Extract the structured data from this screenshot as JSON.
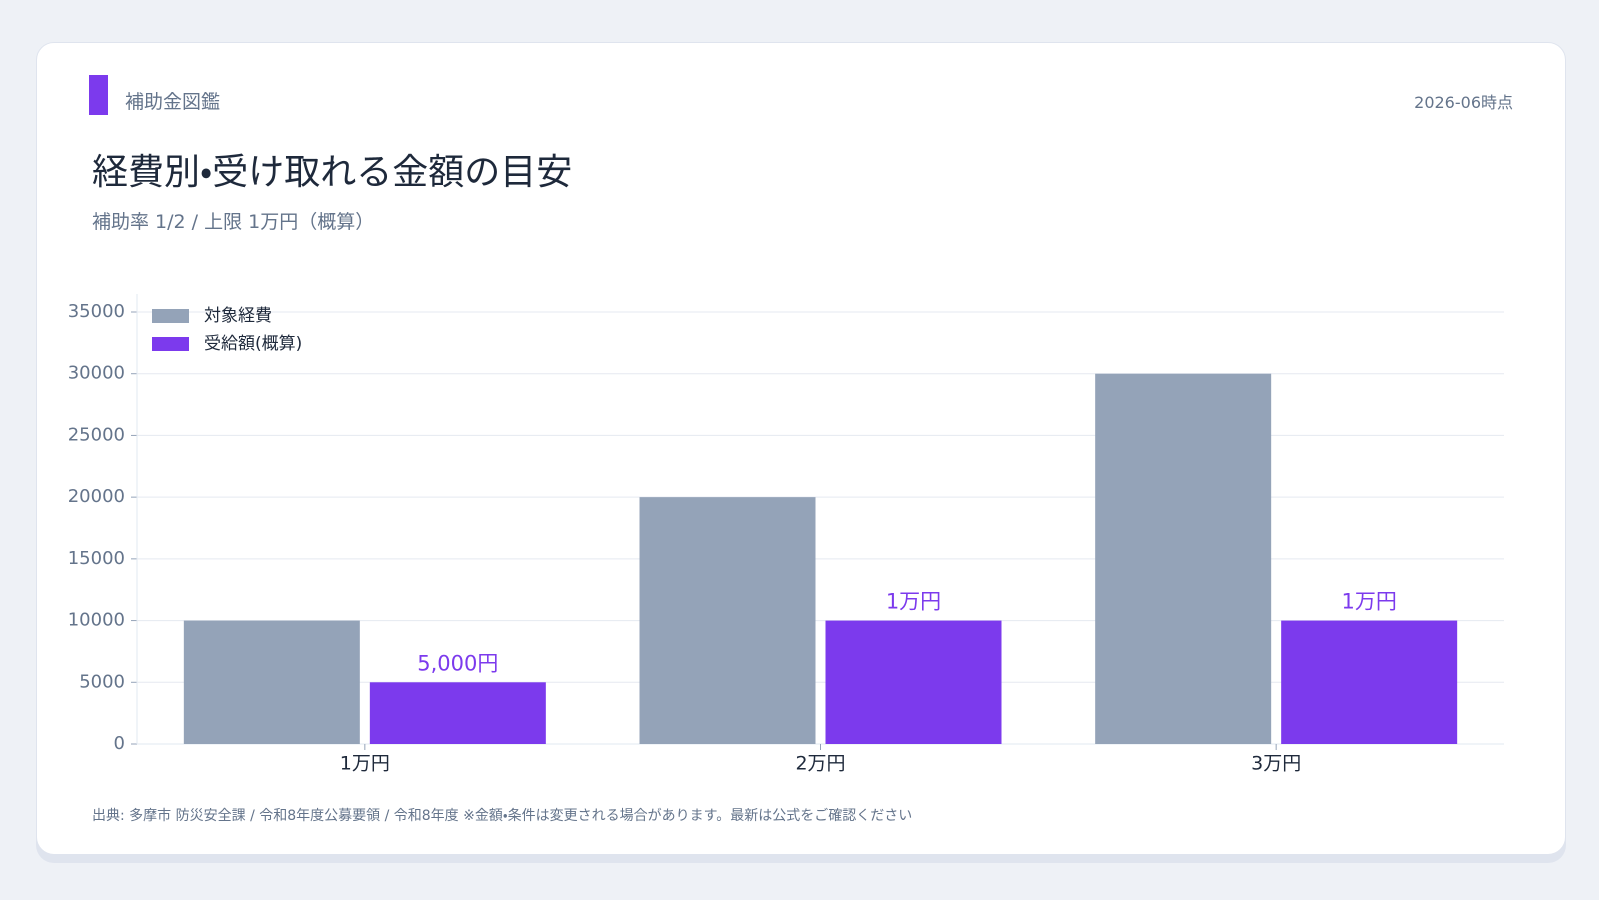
{
  "header": {
    "brand": "補助金図鑑",
    "date": "2026-06時点"
  },
  "chart_data": {
    "type": "bar",
    "title": "経費別・受け取れる金額の目安",
    "subtitle": "補助率 1/2 / 上限 1万円（概算）",
    "categories": [
      "1万円",
      "2万円",
      "3万円"
    ],
    "series": [
      {
        "name": "対象経費",
        "color": "#94a3b8",
        "values": [
          10000,
          20000,
          30000
        ]
      },
      {
        "name": "受給額(概算)",
        "color": "#7c3aed",
        "values": [
          5000,
          10000,
          10000
        ],
        "value_labels": [
          "5,000円",
          "1万円",
          "1万円"
        ]
      }
    ],
    "ylim": [
      0,
      35000
    ],
    "yticks": [
      0,
      5000,
      10000,
      15000,
      20000,
      25000,
      30000,
      35000
    ],
    "grid": true,
    "legend": "upper-left"
  },
  "footer": {
    "source": "出典: 多摩市 防災安全課 / 令和8年度公募要領 / 令和8年度 ※金額・条件は変更される場合があります。最新は公式をご確認ください"
  }
}
